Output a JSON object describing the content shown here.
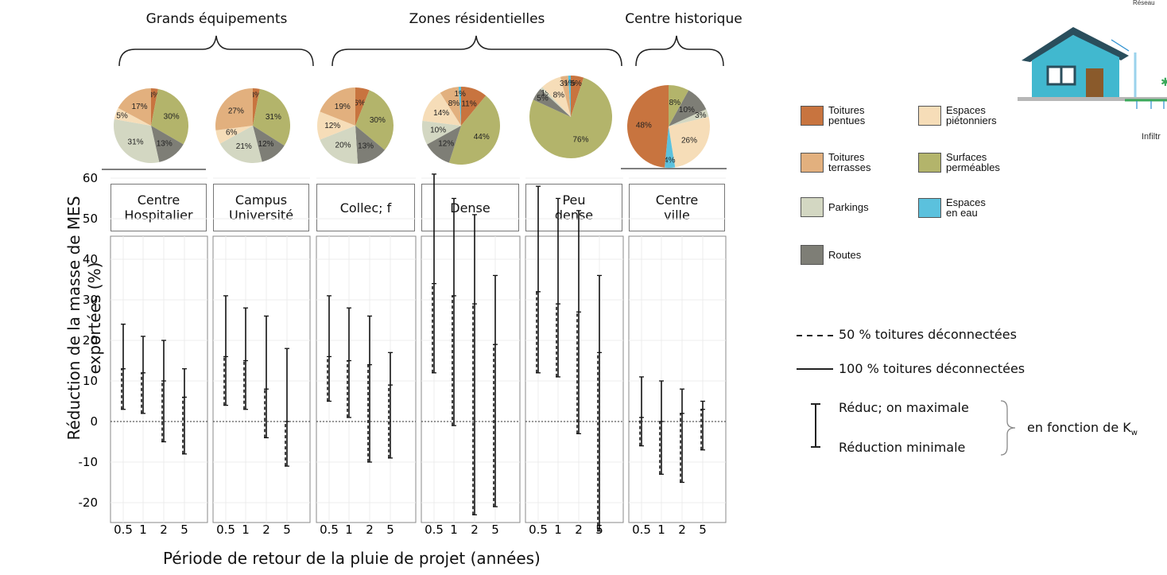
{
  "chart_data": {
    "type": "error-bar",
    "xlabel": "Période de retour de la pluie de projet (années)",
    "ylabel_lines": [
      "Réduction de la masse de MES",
      "exportées (%)"
    ],
    "ylim": [
      -27,
      63
    ],
    "yticks": [
      60,
      50,
      40,
      30,
      20,
      10,
      0,
      -10,
      -20
    ],
    "ytick_labels": [
      "60",
      "50",
      "40",
      "30",
      "20",
      "10",
      "0",
      "-10",
      "-20"
    ],
    "x_categories": [
      "0.5",
      "1",
      "2",
      "5"
    ],
    "groups": [
      {
        "label": "Grands équipements",
        "facets": [
          0,
          1
        ]
      },
      {
        "label": "Zones résidentielles",
        "facets": [
          2,
          3,
          4
        ]
      },
      {
        "label": "Centre historique",
        "facets": [
          5
        ]
      }
    ],
    "facets": [
      {
        "label": "Centre\nHospitalier",
        "series": [
          {
            "name": "50 % toitures déconnectées",
            "ymin": [
              3,
              2,
              -5,
              -8
            ],
            "ymax": [
              13,
              12,
              10,
              6
            ]
          },
          {
            "name": "100 % toitures déconnectées",
            "ymin": [
              3,
              2,
              -5,
              -8
            ],
            "ymax": [
              24,
              21,
              20,
              13
            ]
          }
        ]
      },
      {
        "label": "Campus\nUniversité",
        "series": [
          {
            "name": "50 % toitures déconnectées",
            "ymin": [
              4,
              3,
              -4,
              -11
            ],
            "ymax": [
              16,
              15,
              8,
              0
            ]
          },
          {
            "name": "100 % toitures déconnectées",
            "ymin": [
              4,
              3,
              -4,
              -11
            ],
            "ymax": [
              31,
              28,
              26,
              18
            ]
          }
        ]
      },
      {
        "label": "Collec; f",
        "series": [
          {
            "name": "50 % toitures déconnectées",
            "ymin": [
              5,
              1,
              -10,
              -9
            ],
            "ymax": [
              16,
              15,
              14,
              9
            ]
          },
          {
            "name": "100 % toitures déconnectées",
            "ymin": [
              5,
              1,
              -10,
              -9
            ],
            "ymax": [
              31,
              28,
              26,
              17
            ]
          }
        ]
      },
      {
        "label": "Dense",
        "series": [
          {
            "name": "50 % toitures déconnectées",
            "ymin": [
              12,
              -1,
              -23,
              -21
            ],
            "ymax": [
              34,
              31,
              29,
              19
            ]
          },
          {
            "name": "100 % toitures déconnectées",
            "ymin": [
              12,
              -1,
              -23,
              -21
            ],
            "ymax": [
              61,
              55,
              51,
              36
            ]
          }
        ]
      },
      {
        "label": "Peu\ndense",
        "series": [
          {
            "name": "50 % toitures déconnectées",
            "ymin": [
              12,
              11,
              -3,
              -27
            ],
            "ymax": [
              32,
              29,
              27,
              17
            ]
          },
          {
            "name": "100 % toitures déconnectées",
            "ymin": [
              12,
              11,
              -3,
              -27
            ],
            "ymax": [
              58,
              55,
              52,
              36
            ]
          }
        ]
      },
      {
        "label": "Centre\nville",
        "series": [
          {
            "name": "50 % toitures déconnectées",
            "ymin": [
              -6,
              -13,
              -15,
              -7
            ],
            "ymax": [
              1,
              0,
              2,
              3
            ]
          },
          {
            "name": "100 % toitures déconnectées",
            "ymin": [
              -6,
              -13,
              -15,
              -7
            ],
            "ymax": [
              11,
              10,
              8,
              5
            ]
          }
        ]
      }
    ],
    "pie_categories": [
      "Toitures pentues",
      "Toitures terrasses",
      "Parkings",
      "Routes",
      "Espaces piétonniers",
      "Surfaces perméables",
      "Espaces en eau"
    ],
    "pies": [
      {
        "facet": "Centre Hospitalier",
        "slices": [
          {
            "cat": 0,
            "v": 3
          },
          {
            "cat": 5,
            "v": 30
          },
          {
            "cat": 3,
            "v": 13
          },
          {
            "cat": 2,
            "v": 31
          },
          {
            "cat": 4,
            "v": 5
          },
          {
            "cat": 1,
            "v": 17
          }
        ]
      },
      {
        "facet": "Campus Université",
        "slices": [
          {
            "cat": 0,
            "v": 3
          },
          {
            "cat": 5,
            "v": 31
          },
          {
            "cat": 3,
            "v": 12
          },
          {
            "cat": 2,
            "v": 21
          },
          {
            "cat": 4,
            "v": 6
          },
          {
            "cat": 1,
            "v": 27
          }
        ]
      },
      {
        "facet": "Collec; f",
        "slices": [
          {
            "cat": 0,
            "v": 6
          },
          {
            "cat": 5,
            "v": 30
          },
          {
            "cat": 3,
            "v": 13
          },
          {
            "cat": 2,
            "v": 20
          },
          {
            "cat": 4,
            "v": 12
          },
          {
            "cat": 1,
            "v": 19
          }
        ]
      },
      {
        "facet": "Dense",
        "slices": [
          {
            "cat": 0,
            "v": 11
          },
          {
            "cat": 5,
            "v": 44
          },
          {
            "cat": 3,
            "v": 12
          },
          {
            "cat": 2,
            "v": 10
          },
          {
            "cat": 4,
            "v": 14
          },
          {
            "cat": 1,
            "v": 8
          },
          {
            "cat": 6,
            "v": 1
          }
        ]
      },
      {
        "facet": "Peu dense",
        "slices": [
          {
            "cat": 0,
            "v": 5
          },
          {
            "cat": 5,
            "v": 76
          },
          {
            "cat": 3,
            "v": 5
          },
          {
            "cat": 2,
            "v": 1
          },
          {
            "cat": 4,
            "v": 8
          },
          {
            "cat": 1,
            "v": 3
          },
          {
            "cat": 6,
            "v": 1
          }
        ]
      },
      {
        "facet": "Centre ville",
        "slices": [
          {
            "cat": 5,
            "v": 8
          },
          {
            "cat": 3,
            "v": 10
          },
          {
            "cat": 2,
            "v": 3
          },
          {
            "cat": 4,
            "v": 26
          },
          {
            "cat": 6,
            "v": 4
          },
          {
            "cat": 0,
            "v": 48
          }
        ]
      }
    ],
    "grid": true
  },
  "legend": {
    "items": [
      {
        "label": "Toitures\npentues",
        "color": "#c8743f"
      },
      {
        "label": "Espaces\npiétonniers",
        "color": "#f6ddb8"
      },
      {
        "label": "Toitures\nterrasses",
        "color": "#e2b07e"
      },
      {
        "label": "Surfaces\nperméables",
        "color": "#b3b46b"
      },
      {
        "label": "Parkings",
        "color": "#d3d7c2"
      },
      {
        "label": "Espaces\nen eau",
        "color": "#5bc1dd"
      },
      {
        "label": "Routes",
        "color": "#7e7e76"
      }
    ],
    "dashed_label": "50 % toitures déconnectées",
    "solid_label": "100 % toitures déconnectées",
    "max_label": "Réduc; on maximale",
    "min_label": "Réduction minimale",
    "kw_label": "en fonction de K",
    "kw_subscript": "w"
  },
  "illustration": {
    "top_text": "Réseau",
    "bottom_text": "Infiltr",
    "wall_color": "#41b8cf",
    "roof_color": "#2a4e5c",
    "ground_color": "#3aa85a"
  }
}
